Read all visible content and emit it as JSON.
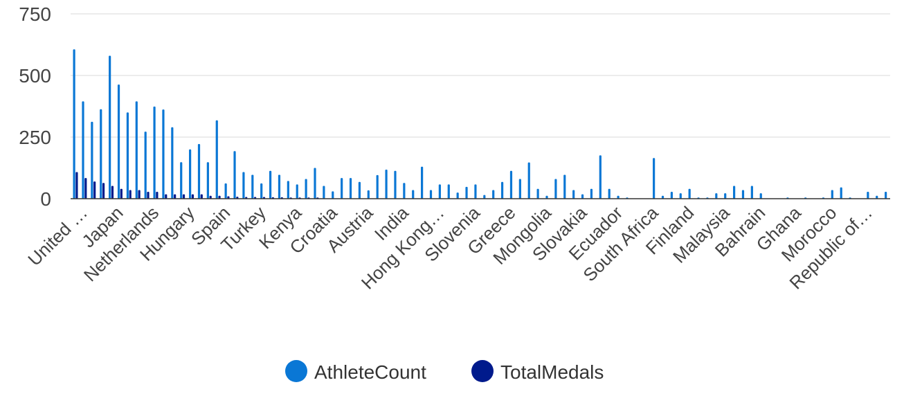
{
  "chart_data": {
    "type": "bar",
    "title": "",
    "xlabel": "",
    "ylabel": "",
    "ylim": [
      0,
      750
    ],
    "yticks": [
      0,
      250,
      500,
      750
    ],
    "grid": true,
    "legend_position": "bottom",
    "visible_x_labels": [
      "United …",
      "Japan",
      "Netherlands",
      "Hungary",
      "Spain",
      "Turkey",
      "Kenya",
      "Croatia",
      "Austria",
      "India",
      "Hong Kong…",
      "Slovenia",
      "Greece",
      "Mongolia",
      "Slovakia",
      "Ecuador",
      "South Africa",
      "Finland",
      "Malaysia",
      "Bahrain",
      "Ghana",
      "Morocco",
      "Republic of…"
    ],
    "series": [
      {
        "name": "AthleteCount",
        "color": "#0a77d5",
        "values": [
          606,
          395,
          312,
          363,
          580,
          463,
          350,
          395,
          272,
          374,
          362,
          290,
          148,
          200,
          222,
          148,
          318,
          62,
          193,
          108,
          97,
          62,
          113,
          97,
          72,
          58,
          80,
          125,
          52,
          30,
          84,
          84,
          68,
          34,
          96,
          118,
          113,
          64,
          35,
          130,
          35,
          58,
          58,
          25,
          48,
          58,
          15,
          35,
          68,
          113,
          80,
          147,
          40,
          12,
          80,
          97,
          35,
          18,
          40,
          176,
          40,
          12,
          5,
          0,
          0,
          165,
          12,
          28,
          22,
          40,
          5,
          5,
          22,
          22,
          52,
          35,
          52,
          22,
          0,
          0,
          5,
          0,
          5,
          0,
          5,
          35,
          46,
          5,
          0,
          28,
          12,
          28,
          0
        ]
      },
      {
        "name": "TotalMedals",
        "color": "#001a8c",
        "values": [
          108,
          84,
          70,
          64,
          52,
          40,
          35,
          35,
          28,
          28,
          18,
          18,
          18,
          18,
          18,
          12,
          12,
          10,
          8,
          7,
          7,
          7,
          6,
          6,
          5,
          5,
          5,
          5,
          0,
          0,
          0,
          0,
          0,
          0,
          0,
          0,
          0,
          0,
          0,
          0,
          0,
          0,
          0,
          0,
          0,
          0,
          0,
          0,
          0,
          0,
          0,
          0,
          0,
          0,
          0,
          0,
          0,
          0,
          0,
          0,
          0,
          0,
          0,
          0,
          0,
          0,
          0,
          0,
          0,
          0,
          0,
          0,
          0,
          0,
          0,
          0,
          0,
          0,
          0,
          0,
          0,
          0,
          0,
          0,
          0,
          0,
          0,
          0,
          0,
          0,
          0,
          0,
          0
        ]
      }
    ]
  }
}
